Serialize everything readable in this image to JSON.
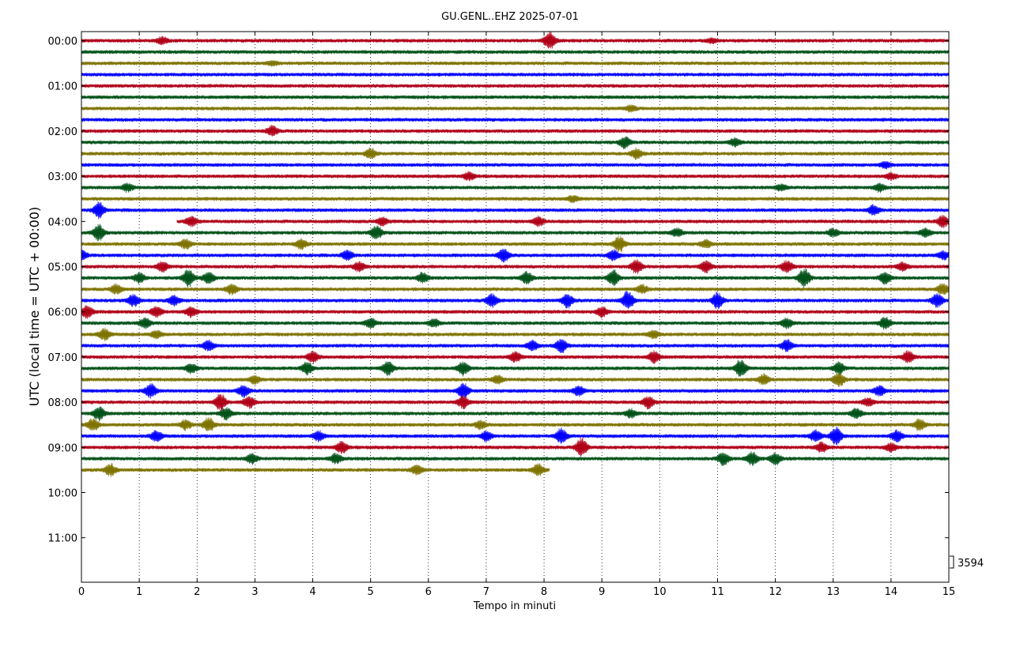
{
  "chart_data": {
    "type": "line",
    "subtype": "helicorder",
    "title": "GU.GENL..EHZ 2025-07-01",
    "xlabel": "Tempo in minuti",
    "ylabel": "UTC (local time = UTC + 00:00)",
    "xlim": [
      0,
      15
    ],
    "x_ticks": [
      "0",
      "1",
      "2",
      "3",
      "4",
      "5",
      "6",
      "7",
      "8",
      "9",
      "10",
      "11",
      "12",
      "13",
      "14",
      "15"
    ],
    "y_tick_labels": [
      "00:00",
      "01:00",
      "02:00",
      "03:00",
      "04:00",
      "05:00",
      "06:00",
      "07:00",
      "08:00",
      "09:00",
      "10:00",
      "11:00"
    ],
    "y_range_hours": [
      0,
      12
    ],
    "minutes_per_line": 15,
    "scale_label": "3594",
    "x_grid": "dotted",
    "y_grid": false,
    "trace_colors": [
      "#b00018",
      "#005218",
      "#7f7300",
      "#0000ff"
    ],
    "traces": [
      {
        "line": 0,
        "label": "00:00",
        "color": "#b00018",
        "start_min": 0,
        "end_min": 15,
        "events": [
          {
            "t": 1.4,
            "amp": 0.35
          },
          {
            "t": 8.1,
            "amp": 0.9
          },
          {
            "t": 10.9,
            "amp": 0.2
          }
        ]
      },
      {
        "line": 1,
        "label": "00:15",
        "color": "#005218",
        "start_min": 0,
        "end_min": 15,
        "events": []
      },
      {
        "line": 2,
        "label": "00:30",
        "color": "#7f7300",
        "start_min": 0,
        "end_min": 15,
        "events": [
          {
            "t": 3.3,
            "amp": 0.2
          }
        ]
      },
      {
        "line": 3,
        "label": "00:45",
        "color": "#0000ff",
        "start_min": 0,
        "end_min": 15,
        "events": []
      },
      {
        "line": 4,
        "label": "01:00",
        "color": "#b00018",
        "start_min": 0,
        "end_min": 15,
        "events": []
      },
      {
        "line": 5,
        "label": "01:15",
        "color": "#005218",
        "start_min": 0,
        "end_min": 15,
        "events": []
      },
      {
        "line": 6,
        "label": "01:30",
        "color": "#7f7300",
        "start_min": 0,
        "end_min": 15,
        "events": [
          {
            "t": 9.5,
            "amp": 0.3
          }
        ]
      },
      {
        "line": 7,
        "label": "01:45",
        "color": "#0000ff",
        "start_min": 0,
        "end_min": 15,
        "events": []
      },
      {
        "line": 8,
        "label": "02:00",
        "color": "#b00018",
        "start_min": 0,
        "end_min": 15,
        "events": [
          {
            "t": 3.3,
            "amp": 0.5
          }
        ]
      },
      {
        "line": 9,
        "label": "02:15",
        "color": "#005218",
        "start_min": 0,
        "end_min": 15,
        "events": [
          {
            "t": 9.4,
            "amp": 0.6
          },
          {
            "t": 11.3,
            "amp": 0.4
          }
        ]
      },
      {
        "line": 10,
        "label": "02:30",
        "color": "#7f7300",
        "start_min": 0,
        "end_min": 15,
        "events": [
          {
            "t": 5.0,
            "amp": 0.5
          },
          {
            "t": 9.6,
            "amp": 0.5
          }
        ]
      },
      {
        "line": 11,
        "label": "02:45",
        "color": "#0000ff",
        "start_min": 0,
        "end_min": 15,
        "events": [
          {
            "t": 13.9,
            "amp": 0.3
          }
        ]
      },
      {
        "line": 12,
        "label": "03:00",
        "color": "#b00018",
        "start_min": 0,
        "end_min": 15,
        "events": [
          {
            "t": 6.7,
            "amp": 0.4
          },
          {
            "t": 14.0,
            "amp": 0.3
          }
        ]
      },
      {
        "line": 13,
        "label": "03:15",
        "color": "#005218",
        "start_min": 0,
        "end_min": 15,
        "events": [
          {
            "t": 0.8,
            "amp": 0.4
          },
          {
            "t": 12.1,
            "amp": 0.3
          },
          {
            "t": 13.8,
            "amp": 0.4
          }
        ]
      },
      {
        "line": 14,
        "label": "03:30",
        "color": "#7f7300",
        "start_min": 0,
        "end_min": 15,
        "events": [
          {
            "t": 8.5,
            "amp": 0.3
          }
        ]
      },
      {
        "line": 15,
        "label": "03:45",
        "color": "#0000ff",
        "start_min": 0,
        "end_min": 15,
        "events": [
          {
            "t": 0.3,
            "amp": 0.8
          },
          {
            "t": 13.7,
            "amp": 0.5
          }
        ]
      },
      {
        "line": 16,
        "label": "04:00",
        "color": "#b00018",
        "start_min": 1.65,
        "end_min": 15,
        "events": [
          {
            "t": 1.9,
            "amp": 0.5
          },
          {
            "t": 5.2,
            "amp": 0.4
          },
          {
            "t": 7.9,
            "amp": 0.5
          },
          {
            "t": 14.9,
            "amp": 0.6
          }
        ]
      },
      {
        "line": 17,
        "label": "04:15",
        "color": "#005218",
        "start_min": 0,
        "end_min": 15,
        "events": [
          {
            "t": 0.3,
            "amp": 0.8
          },
          {
            "t": 5.1,
            "amp": 0.7
          },
          {
            "t": 10.3,
            "amp": 0.4
          },
          {
            "t": 13.0,
            "amp": 0.4
          },
          {
            "t": 14.6,
            "amp": 0.4
          }
        ]
      },
      {
        "line": 18,
        "label": "04:30",
        "color": "#7f7300",
        "start_min": 0,
        "end_min": 15,
        "events": [
          {
            "t": 1.8,
            "amp": 0.5
          },
          {
            "t": 3.8,
            "amp": 0.5
          },
          {
            "t": 9.3,
            "amp": 0.8
          },
          {
            "t": 10.8,
            "amp": 0.4
          }
        ]
      },
      {
        "line": 19,
        "label": "04:45",
        "color": "#0000ff",
        "start_min": 0,
        "end_min": 15,
        "events": [
          {
            "t": 0.0,
            "amp": 0.5
          },
          {
            "t": 4.6,
            "amp": 0.5
          },
          {
            "t": 7.3,
            "amp": 0.7
          },
          {
            "t": 9.2,
            "amp": 0.5
          },
          {
            "t": 14.9,
            "amp": 0.4
          }
        ]
      },
      {
        "line": 20,
        "label": "05:00",
        "color": "#b00018",
        "start_min": 0,
        "end_min": 15,
        "events": [
          {
            "t": 1.4,
            "amp": 0.5
          },
          {
            "t": 4.8,
            "amp": 0.5
          },
          {
            "t": 9.6,
            "amp": 0.7
          },
          {
            "t": 10.8,
            "amp": 0.6
          },
          {
            "t": 12.2,
            "amp": 0.6
          },
          {
            "t": 14.2,
            "amp": 0.4
          }
        ]
      },
      {
        "line": 21,
        "label": "05:15",
        "color": "#005218",
        "start_min": 0,
        "end_min": 15,
        "events": [
          {
            "t": 1.0,
            "amp": 0.5
          },
          {
            "t": 1.85,
            "amp": 0.9
          },
          {
            "t": 2.2,
            "amp": 0.6
          },
          {
            "t": 5.9,
            "amp": 0.5
          },
          {
            "t": 7.7,
            "amp": 0.6
          },
          {
            "t": 9.2,
            "amp": 0.8
          },
          {
            "t": 12.5,
            "amp": 1.0
          },
          {
            "t": 13.9,
            "amp": 0.6
          }
        ]
      },
      {
        "line": 22,
        "label": "05:30",
        "color": "#7f7300",
        "start_min": 0,
        "end_min": 15,
        "events": [
          {
            "t": 0.6,
            "amp": 0.5
          },
          {
            "t": 2.6,
            "amp": 0.5
          },
          {
            "t": 9.7,
            "amp": 0.4
          },
          {
            "t": 14.9,
            "amp": 0.6
          }
        ]
      },
      {
        "line": 23,
        "label": "05:45",
        "color": "#0000ff",
        "start_min": 0,
        "end_min": 15,
        "events": [
          {
            "t": 0.9,
            "amp": 0.6
          },
          {
            "t": 1.6,
            "amp": 0.5
          },
          {
            "t": 7.1,
            "amp": 0.7
          },
          {
            "t": 8.4,
            "amp": 0.7
          },
          {
            "t": 9.45,
            "amp": 1.0
          },
          {
            "t": 11.0,
            "amp": 0.8
          },
          {
            "t": 14.8,
            "amp": 0.7
          }
        ]
      },
      {
        "line": 24,
        "label": "06:00",
        "color": "#b00018",
        "start_min": 0,
        "end_min": 15,
        "events": [
          {
            "t": 0.1,
            "amp": 0.7
          },
          {
            "t": 1.3,
            "amp": 0.6
          },
          {
            "t": 1.9,
            "amp": 0.5
          },
          {
            "t": 9.0,
            "amp": 0.5
          }
        ]
      },
      {
        "line": 25,
        "label": "06:15",
        "color": "#005218",
        "start_min": 0,
        "end_min": 15,
        "events": [
          {
            "t": 1.1,
            "amp": 0.5
          },
          {
            "t": 5.0,
            "amp": 0.5
          },
          {
            "t": 6.1,
            "amp": 0.4
          },
          {
            "t": 12.2,
            "amp": 0.5
          },
          {
            "t": 13.9,
            "amp": 0.6
          }
        ]
      },
      {
        "line": 26,
        "label": "06:30",
        "color": "#7f7300",
        "start_min": 0,
        "end_min": 15,
        "events": [
          {
            "t": 0.4,
            "amp": 0.6
          },
          {
            "t": 1.3,
            "amp": 0.4
          },
          {
            "t": 9.9,
            "amp": 0.4
          }
        ]
      },
      {
        "line": 27,
        "label": "06:45",
        "color": "#0000ff",
        "start_min": 0,
        "end_min": 15,
        "events": [
          {
            "t": 2.2,
            "amp": 0.5
          },
          {
            "t": 7.8,
            "amp": 0.5
          },
          {
            "t": 8.3,
            "amp": 0.7
          },
          {
            "t": 12.2,
            "amp": 0.6
          }
        ]
      },
      {
        "line": 28,
        "label": "07:00",
        "color": "#b00018",
        "start_min": 0,
        "end_min": 15,
        "events": [
          {
            "t": 4.0,
            "amp": 0.6
          },
          {
            "t": 7.5,
            "amp": 0.5
          },
          {
            "t": 9.9,
            "amp": 0.6
          },
          {
            "t": 14.3,
            "amp": 0.6
          }
        ]
      },
      {
        "line": 29,
        "label": "07:15",
        "color": "#005218",
        "start_min": 0,
        "end_min": 15,
        "events": [
          {
            "t": 1.9,
            "amp": 0.5
          },
          {
            "t": 3.9,
            "amp": 0.6
          },
          {
            "t": 5.3,
            "amp": 0.7
          },
          {
            "t": 6.6,
            "amp": 0.7
          },
          {
            "t": 11.4,
            "amp": 0.9
          },
          {
            "t": 13.1,
            "amp": 0.6
          }
        ]
      },
      {
        "line": 30,
        "label": "07:30",
        "color": "#7f7300",
        "start_min": 0,
        "end_min": 15,
        "events": [
          {
            "t": 3.0,
            "amp": 0.4
          },
          {
            "t": 7.2,
            "amp": 0.4
          },
          {
            "t": 11.8,
            "amp": 0.5
          },
          {
            "t": 13.1,
            "amp": 0.7
          }
        ]
      },
      {
        "line": 31,
        "label": "07:45",
        "color": "#0000ff",
        "start_min": 0,
        "end_min": 15,
        "events": [
          {
            "t": 1.2,
            "amp": 0.7
          },
          {
            "t": 2.8,
            "amp": 0.6
          },
          {
            "t": 6.6,
            "amp": 0.8
          },
          {
            "t": 8.6,
            "amp": 0.5
          },
          {
            "t": 13.8,
            "amp": 0.5
          }
        ]
      },
      {
        "line": 32,
        "label": "08:00",
        "color": "#b00018",
        "start_min": 0,
        "end_min": 15,
        "events": [
          {
            "t": 2.4,
            "amp": 0.9
          },
          {
            "t": 2.9,
            "amp": 0.6
          },
          {
            "t": 6.6,
            "amp": 0.6
          },
          {
            "t": 9.8,
            "amp": 0.6
          },
          {
            "t": 13.6,
            "amp": 0.4
          }
        ]
      },
      {
        "line": 33,
        "label": "08:15",
        "color": "#005218",
        "start_min": 0,
        "end_min": 15,
        "events": [
          {
            "t": 0.3,
            "amp": 0.7
          },
          {
            "t": 2.5,
            "amp": 0.6
          },
          {
            "t": 9.5,
            "amp": 0.4
          },
          {
            "t": 13.4,
            "amp": 0.5
          }
        ]
      },
      {
        "line": 34,
        "label": "08:30",
        "color": "#7f7300",
        "start_min": 0,
        "end_min": 15,
        "events": [
          {
            "t": 0.2,
            "amp": 0.6
          },
          {
            "t": 1.8,
            "amp": 0.5
          },
          {
            "t": 2.2,
            "amp": 0.7
          },
          {
            "t": 6.9,
            "amp": 0.4
          },
          {
            "t": 14.5,
            "amp": 0.6
          }
        ]
      },
      {
        "line": 35,
        "label": "08:45",
        "color": "#0000ff",
        "start_min": 0,
        "end_min": 15,
        "events": [
          {
            "t": 1.3,
            "amp": 0.6
          },
          {
            "t": 4.1,
            "amp": 0.5
          },
          {
            "t": 7.0,
            "amp": 0.5
          },
          {
            "t": 8.3,
            "amp": 0.8
          },
          {
            "t": 12.7,
            "amp": 0.6
          },
          {
            "t": 13.05,
            "amp": 0.9
          },
          {
            "t": 14.1,
            "amp": 0.6
          }
        ]
      },
      {
        "line": 36,
        "label": "09:00",
        "color": "#b00018",
        "start_min": 0,
        "end_min": 15,
        "events": [
          {
            "t": 4.5,
            "amp": 0.6
          },
          {
            "t": 8.65,
            "amp": 1.0
          },
          {
            "t": 12.8,
            "amp": 0.5
          },
          {
            "t": 14.0,
            "amp": 0.4
          }
        ]
      },
      {
        "line": 37,
        "label": "09:15",
        "color": "#005218",
        "start_min": 0,
        "end_min": 15,
        "events": [
          {
            "t": 2.95,
            "amp": 0.5
          },
          {
            "t": 4.4,
            "amp": 0.5
          },
          {
            "t": 11.1,
            "amp": 0.7
          },
          {
            "t": 11.6,
            "amp": 0.7
          },
          {
            "t": 12.0,
            "amp": 0.6
          }
        ]
      },
      {
        "line": 38,
        "label": "09:30",
        "color": "#7f7300",
        "start_min": 0,
        "end_min": 8.1,
        "events": [
          {
            "t": 0.5,
            "amp": 0.6
          },
          {
            "t": 5.8,
            "amp": 0.5
          },
          {
            "t": 7.9,
            "amp": 0.6
          }
        ]
      }
    ]
  }
}
